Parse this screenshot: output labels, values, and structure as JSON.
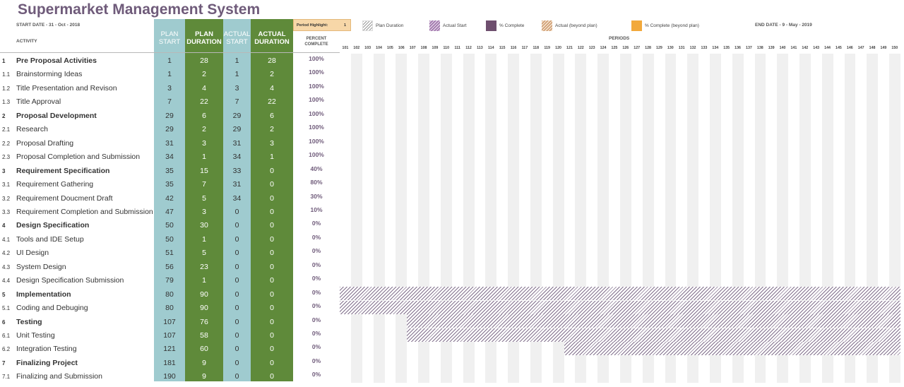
{
  "title": "Supermarket Management System",
  "start_date": "START DATE - 31 - Oct - 2018",
  "end_date": "END DATE - 9 - May - 2019",
  "activity_label": "ACTIVITY",
  "periods_label": "PERIODS",
  "period_highlight": {
    "label": "Period Highlight:",
    "value": "1"
  },
  "legend": {
    "plan_duration": "Plan Duration",
    "actual_start": "Actual Start",
    "percent_complete": "% Complete",
    "actual_beyond": "Actual (beyond plan)",
    "percent_complete_beyond": "% Complete (beyond plan)"
  },
  "columns": {
    "plan_start": [
      "PLAN",
      "START"
    ],
    "plan_duration": [
      "PLAN",
      "DURATION"
    ],
    "actual_start": [
      "ACTUAL",
      "START"
    ],
    "actual_duration": [
      "ACTUAL",
      "DURATION"
    ],
    "percent_complete": [
      "PERCENT",
      "COMPLETE"
    ]
  },
  "colors": {
    "plan_start_bg": "#9fcbcf",
    "plan_duration_bg": "#5f8a3a",
    "actual_start_bg": "#9fcbcf",
    "actual_duration_bg": "#5f8a3a",
    "title": "#6f5b7a"
  },
  "period_start": 101,
  "period_end": 150,
  "activities": [
    {
      "num": "1",
      "name": "Pre Proposal Activities",
      "bold": true,
      "plan_start": "1",
      "plan_duration": "28",
      "actual_start": "1",
      "actual_duration": "28",
      "percent": "100%"
    },
    {
      "num": "1.1",
      "name": "Brainstorming Ideas",
      "bold": false,
      "plan_start": "1",
      "plan_duration": "2",
      "actual_start": "1",
      "actual_duration": "2",
      "percent": "100%"
    },
    {
      "num": "1.2",
      "name": "Title Presentation and Revison",
      "bold": false,
      "plan_start": "3",
      "plan_duration": "4",
      "actual_start": "3",
      "actual_duration": "4",
      "percent": "100%"
    },
    {
      "num": "1.3",
      "name": "Title Approval",
      "bold": false,
      "plan_start": "7",
      "plan_duration": "22",
      "actual_start": "7",
      "actual_duration": "22",
      "percent": "100%"
    },
    {
      "num": "2",
      "name": "Proposal Development",
      "bold": true,
      "plan_start": "29",
      "plan_duration": "6",
      "actual_start": "29",
      "actual_duration": "6",
      "percent": "100%"
    },
    {
      "num": "2.1",
      "name": "Research",
      "bold": false,
      "plan_start": "29",
      "plan_duration": "2",
      "actual_start": "29",
      "actual_duration": "2",
      "percent": "100%"
    },
    {
      "num": "2.2",
      "name": "Proposal Drafting",
      "bold": false,
      "plan_start": "31",
      "plan_duration": "3",
      "actual_start": "31",
      "actual_duration": "3",
      "percent": "100%"
    },
    {
      "num": "2.3",
      "name": "Proposal Completion and Submission",
      "bold": false,
      "plan_start": "34",
      "plan_duration": "1",
      "actual_start": "34",
      "actual_duration": "1",
      "percent": "100%"
    },
    {
      "num": "3",
      "name": "Requirement Specification",
      "bold": true,
      "plan_start": "35",
      "plan_duration": "15",
      "actual_start": "33",
      "actual_duration": "0",
      "percent": "40%"
    },
    {
      "num": "3.1",
      "name": "Requirement Gathering",
      "bold": false,
      "plan_start": "35",
      "plan_duration": "7",
      "actual_start": "31",
      "actual_duration": "0",
      "percent": "80%"
    },
    {
      "num": "3.2",
      "name": "Requirement Doucment Draft",
      "bold": false,
      "plan_start": "42",
      "plan_duration": "5",
      "actual_start": "34",
      "actual_duration": "0",
      "percent": "30%"
    },
    {
      "num": "3.3",
      "name": "Requirement Completion and Submission",
      "bold": false,
      "plan_start": "47",
      "plan_duration": "3",
      "actual_start": "0",
      "actual_duration": "0",
      "percent": "10%"
    },
    {
      "num": "4",
      "name": "Design Specification",
      "bold": true,
      "plan_start": "50",
      "plan_duration": "30",
      "actual_start": "0",
      "actual_duration": "0",
      "percent": "0%"
    },
    {
      "num": "4.1",
      "name": "Tools and IDE Setup",
      "bold": false,
      "plan_start": "50",
      "plan_duration": "1",
      "actual_start": "0",
      "actual_duration": "0",
      "percent": "0%"
    },
    {
      "num": "4.2",
      "name": "UI Design",
      "bold": false,
      "plan_start": "51",
      "plan_duration": "5",
      "actual_start": "0",
      "actual_duration": "0",
      "percent": "0%"
    },
    {
      "num": "4.3",
      "name": "System Design",
      "bold": false,
      "plan_start": "56",
      "plan_duration": "23",
      "actual_start": "0",
      "actual_duration": "0",
      "percent": "0%"
    },
    {
      "num": "4.4",
      "name": "Design Specification Submission",
      "bold": false,
      "plan_start": "79",
      "plan_duration": "1",
      "actual_start": "0",
      "actual_duration": "0",
      "percent": "0%"
    },
    {
      "num": "5",
      "name": "Implementation",
      "bold": true,
      "plan_start": "80",
      "plan_duration": "90",
      "actual_start": "0",
      "actual_duration": "0",
      "percent": "0%"
    },
    {
      "num": "5.1",
      "name": "Coding and Debuging",
      "bold": false,
      "plan_start": "80",
      "plan_duration": "90",
      "actual_start": "0",
      "actual_duration": "0",
      "percent": "0%"
    },
    {
      "num": "6",
      "name": "Testing",
      "bold": true,
      "plan_start": "107",
      "plan_duration": "76",
      "actual_start": "0",
      "actual_duration": "0",
      "percent": "0%"
    },
    {
      "num": "6.1",
      "name": "Unit Testing",
      "bold": false,
      "plan_start": "107",
      "plan_duration": "58",
      "actual_start": "0",
      "actual_duration": "0",
      "percent": "0%"
    },
    {
      "num": "6.2",
      "name": "Integration Testing",
      "bold": false,
      "plan_start": "121",
      "plan_duration": "60",
      "actual_start": "0",
      "actual_duration": "0",
      "percent": "0%"
    },
    {
      "num": "7",
      "name": "Finalizing Project",
      "bold": true,
      "plan_start": "181",
      "plan_duration": "9",
      "actual_start": "0",
      "actual_duration": "0",
      "percent": "0%"
    },
    {
      "num": "7.1",
      "name": "Finalizing and Submission",
      "bold": false,
      "plan_start": "190",
      "plan_duration": "9",
      "actual_start": "0",
      "actual_duration": "0",
      "percent": "0%"
    }
  ]
}
